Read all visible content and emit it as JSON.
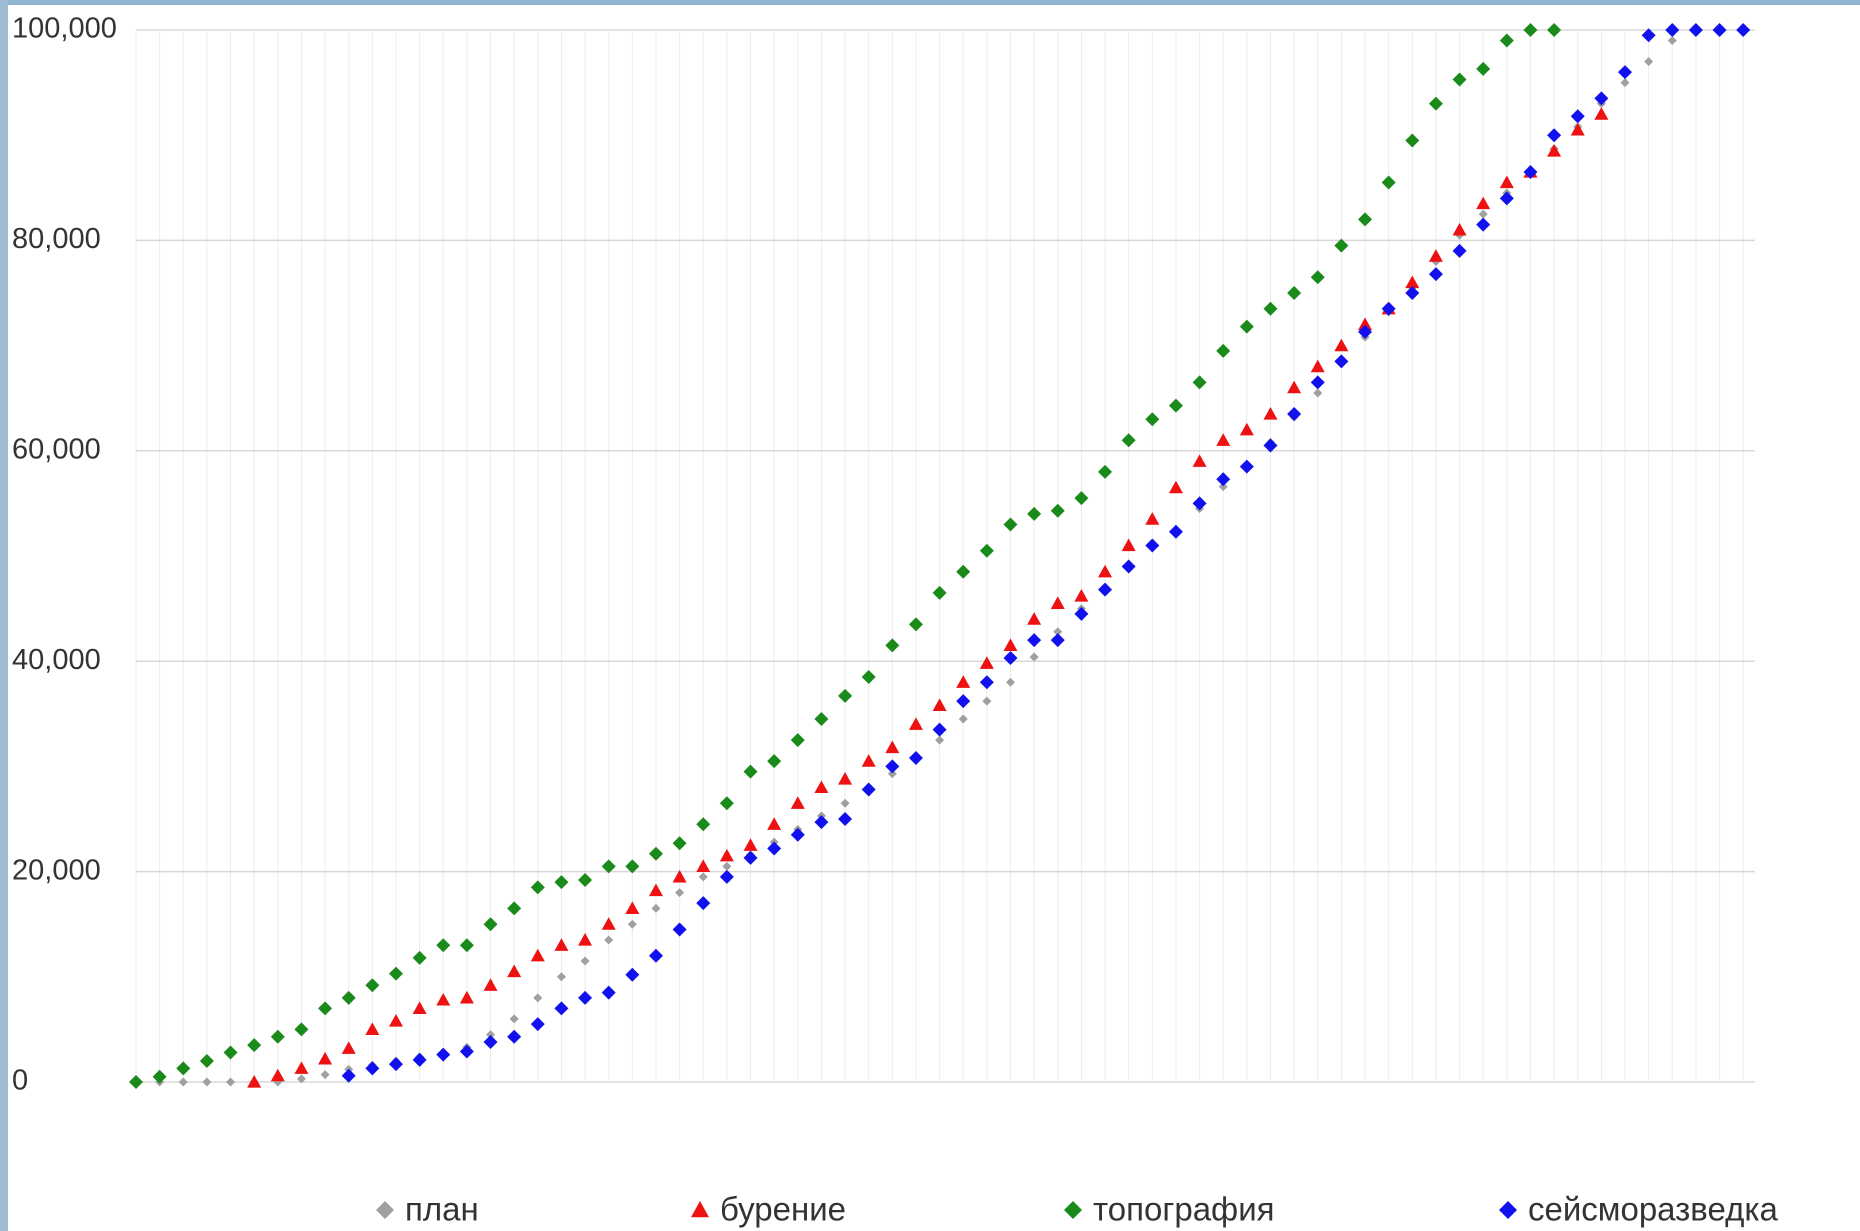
{
  "chart_data": {
    "type": "line",
    "legend": "bottom",
    "grid": true,
    "x": [
      0,
      2,
      4,
      6,
      8,
      10,
      12,
      14,
      16,
      18,
      20,
      22,
      24,
      26,
      28,
      30,
      32,
      34,
      36,
      38,
      40,
      42,
      44,
      46,
      48,
      50,
      52,
      54,
      56,
      58,
      60,
      62,
      64,
      66,
      68,
      70,
      72,
      74,
      76,
      78,
      80,
      82,
      84,
      86,
      88,
      90,
      92,
      94,
      96,
      98,
      100,
      102,
      104,
      106,
      108,
      110,
      112,
      114,
      116,
      118,
      120,
      122,
      124,
      126,
      128,
      130,
      132,
      134,
      136
    ],
    "xlim": [
      0,
      137
    ],
    "ylim": [
      0,
      100000
    ],
    "yticks": [
      0,
      {
        "value": 20000,
        "label": "20,000"
      },
      {
        "value": 40000,
        "label": "40,000"
      },
      {
        "value": 60000,
        "label": "60,000"
      },
      {
        "value": 80000,
        "label": "80,000"
      },
      {
        "value": 100000,
        "label": "100,000"
      }
    ],
    "series": [
      {
        "name": "план",
        "color": "#a0a0a0",
        "marker": "diamond",
        "values": [
          0,
          0,
          0,
          0,
          0,
          0,
          0,
          300,
          700,
          1200,
          1600,
          2000,
          2400,
          2800,
          3300,
          4500,
          6000,
          8000,
          10000,
          11500,
          13500,
          15000,
          16500,
          18000,
          19500,
          20500,
          21600,
          22800,
          24000,
          25300,
          26500,
          28000,
          29300,
          30800,
          32500,
          34500,
          36200,
          38000,
          40400,
          42800,
          45000,
          47000,
          49000,
          50800,
          52500,
          54500,
          56600,
          58500,
          60800,
          63200,
          65500,
          68500,
          70800,
          73200,
          75500,
          78000,
          80500,
          82500,
          84500,
          86500,
          88700,
          90800,
          93000,
          95000,
          97000,
          99000,
          100000,
          null,
          null
        ]
      },
      {
        "name": "бурение",
        "color": "#ee1111",
        "marker": "triangle",
        "values": [
          null,
          null,
          null,
          null,
          null,
          0,
          600,
          1300,
          2200,
          3200,
          5000,
          5800,
          7000,
          7800,
          8000,
          9200,
          10500,
          12000,
          13000,
          13500,
          15000,
          16500,
          18200,
          19500,
          20500,
          21500,
          22500,
          24500,
          26500,
          28000,
          28800,
          30500,
          31800,
          34000,
          35800,
          38000,
          39800,
          41500,
          44000,
          45500,
          46200,
          48500,
          51000,
          53500,
          56500,
          59000,
          61000,
          62000,
          63500,
          66000,
          68000,
          70000,
          72000,
          73500,
          76000,
          78500,
          81000,
          83500,
          85500,
          86500,
          88500,
          90500,
          92000,
          null,
          null,
          null,
          null,
          null,
          null
        ]
      },
      {
        "name": "топография",
        "color": "#1a8a1a",
        "marker": "diamond",
        "values": [
          0,
          500,
          1300,
          2000,
          2800,
          3500,
          4300,
          5000,
          7000,
          8000,
          9200,
          10300,
          11800,
          13000,
          13000,
          15000,
          16500,
          18500,
          19000,
          19200,
          20500,
          20500,
          21700,
          22700,
          24500,
          26500,
          29500,
          30500,
          32500,
          34500,
          36700,
          38500,
          41500,
          43500,
          46500,
          48500,
          50500,
          53000,
          54000,
          54300,
          55500,
          58000,
          61000,
          63000,
          64300,
          66500,
          69500,
          71800,
          73500,
          75000,
          76500,
          79500,
          82000,
          85500,
          89500,
          93000,
          95300,
          96300,
          99000,
          100000,
          100000,
          null,
          null,
          null,
          null,
          null,
          null,
          null,
          null
        ]
      },
      {
        "name": "сейсморазведка",
        "color": "#1111ee",
        "marker": "diamond",
        "values": [
          null,
          null,
          null,
          null,
          null,
          null,
          null,
          null,
          null,
          600,
          1300,
          1700,
          2100,
          2600,
          2900,
          3800,
          4300,
          5500,
          7000,
          8000,
          8500,
          10200,
          12000,
          14500,
          17000,
          19500,
          21300,
          22200,
          23500,
          24700,
          25000,
          27800,
          30000,
          30800,
          33500,
          36200,
          38000,
          40300,
          42000,
          42000,
          44500,
          46800,
          49000,
          51000,
          52300,
          55000,
          57300,
          58500,
          60500,
          63500,
          66500,
          68500,
          71300,
          73500,
          75000,
          76800,
          79000,
          81500,
          84000,
          86500,
          90000,
          91800,
          93500,
          96000,
          99500,
          100000,
          100000,
          100000,
          100000
        ]
      }
    ]
  }
}
